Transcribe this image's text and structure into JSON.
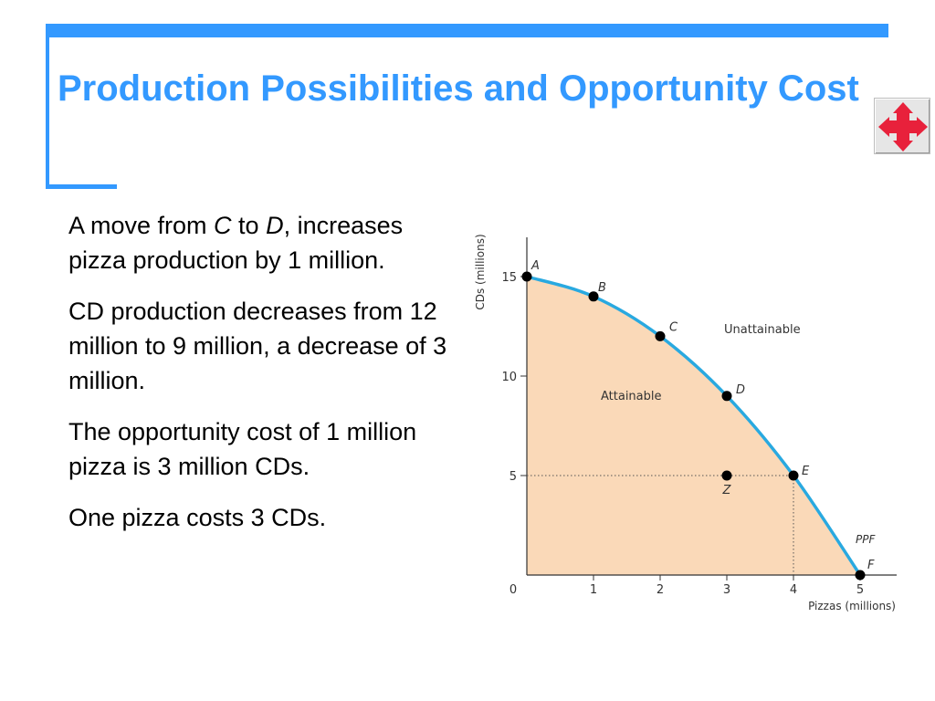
{
  "slide": {
    "title": "Production Possibilities and Opportunity Cost",
    "accent_color": "#3399ff"
  },
  "nav_icon": "four-way-arrow-icon",
  "body": {
    "p1": {
      "part1": "A move from ",
      "italic1": "C",
      "part2": " to ",
      "italic2": "D",
      "part3": ", increases pizza production by 1 million."
    },
    "p2": "CD production decreases from 12 million to 9 million, a decrease of 3 million.",
    "p3": "The opportunity cost of 1 million pizza is 3 million CDs.",
    "p4": "One pizza costs 3 CDs."
  },
  "chart_data": {
    "type": "line",
    "xlabel": "Pizzas (millions)",
    "ylabel": "CDs (millions)",
    "xlim": [
      0,
      5
    ],
    "ylim": [
      0,
      15
    ],
    "x_ticks": [
      0,
      1,
      2,
      3,
      4,
      5
    ],
    "y_ticks": [
      5,
      10,
      15
    ],
    "origin_label": "0",
    "curve_label": "PPF",
    "curve_color": "#29a9e0",
    "fill_color": "#fad9b8",
    "points": [
      {
        "label": "A",
        "x": 0,
        "y": 15
      },
      {
        "label": "B",
        "x": 1,
        "y": 14
      },
      {
        "label": "C",
        "x": 2,
        "y": 12
      },
      {
        "label": "D",
        "x": 3,
        "y": 9
      },
      {
        "label": "E",
        "x": 4,
        "y": 5
      },
      {
        "label": "F",
        "x": 5,
        "y": 0
      }
    ],
    "inside_point": {
      "label": "Z",
      "x": 3,
      "y": 5
    },
    "region_labels": {
      "attainable": "Attainable",
      "unattainable": "Unattainable"
    }
  }
}
